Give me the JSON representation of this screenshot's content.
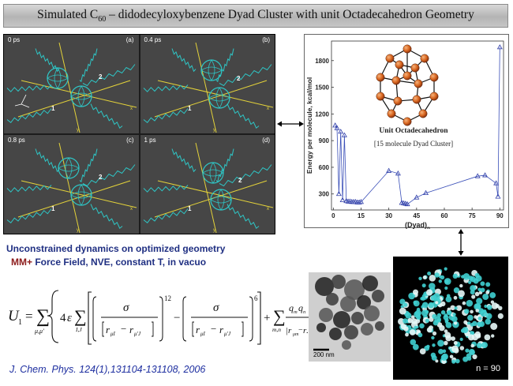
{
  "title": {
    "prefix": "Simulated C",
    "subscript": "60",
    "suffix": " – didodecyloxybenzene Dyad Cluster with unit Octadecahedron Geometry"
  },
  "snapshots": [
    {
      "time": "0 ps",
      "letter": "(a)"
    },
    {
      "time": "0.4 ps",
      "letter": "(b)"
    },
    {
      "time": "0.8 ps",
      "letter": "(c)"
    },
    {
      "time": "1 ps",
      "letter": "(d)"
    }
  ],
  "snapshot_labels": {
    "mol1": "1",
    "mol2": "2",
    "x": "x",
    "y": "y",
    "z": "z"
  },
  "chart_data": {
    "type": "line",
    "title": "",
    "xlabel_main": "(Dyad)",
    "xlabel_sub": "n",
    "ylabel": "Energy per molecule, kcal/mol",
    "xlim": [
      -1,
      92
    ],
    "ylim": [
      120,
      2020
    ],
    "xticks": [
      0,
      15,
      30,
      45,
      60,
      75,
      90
    ],
    "yticks": [
      300,
      600,
      900,
      1200,
      1500,
      1800
    ],
    "x": [
      1,
      2,
      3,
      4,
      5,
      6,
      7,
      8,
      9,
      10,
      11,
      12,
      13,
      14,
      15,
      30,
      35,
      37,
      38,
      39,
      40,
      45,
      50,
      78,
      82,
      88,
      89,
      90
    ],
    "y": [
      1070,
      1040,
      300,
      1000,
      230,
      960,
      220,
      215,
      215,
      210,
      210,
      210,
      205,
      205,
      210,
      560,
      530,
      200,
      195,
      190,
      185,
      260,
      310,
      500,
      510,
      420,
      270,
      1950
    ],
    "annotation_title": "Unit Octadecahedron",
    "annotation_subtitle": "[15 molecule Dyad Cluster]"
  },
  "dynamics_text": "Unconstrained dynamics on optimized geometry",
  "forcefield": {
    "mm": "MM+",
    "rest": " Force Field, NVE, constant T, in vacuo"
  },
  "tem_scale": "200 nm",
  "cluster_label": "n = 90",
  "citation": "J. Chem. Phys. 124(1),131104-131108, 2006",
  "colors": {
    "title_text": "#111111",
    "molecule": "#2ec6c6",
    "axis_yellow": "#e3d23a",
    "chart_line": "#3a4fb8",
    "marker": "#2e3da8",
    "atom": "#d9661f",
    "text_blue": "#1f2f82",
    "mm_red": "#8c1b1b",
    "citation": "#1e2fa0"
  }
}
